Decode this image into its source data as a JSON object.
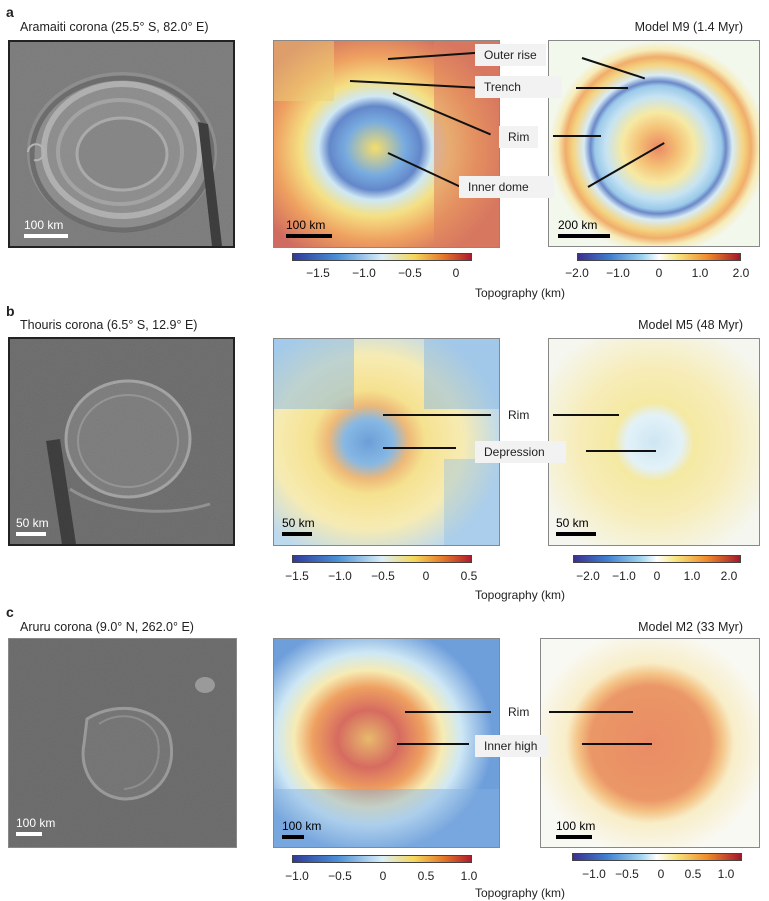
{
  "rows": [
    {
      "letter": "a",
      "title": "Aramaiti corona (25.5° S, 82.0° E)",
      "model": "Model M9 (1.4 Myr)",
      "scale_radar": "100 km",
      "scale_topo": "100 km",
      "scale_model": "200 km",
      "callouts": [
        "Outer rise",
        "Trench",
        "Rim",
        "Inner dome"
      ],
      "cb1": {
        "ticks": [
          "−1.5",
          "−1.0",
          "−0.5",
          "0"
        ]
      },
      "cb2": {
        "ticks": [
          "−2.0",
          "−1.0",
          "0",
          "1.0",
          "2.0"
        ]
      },
      "cb_title": "Topography (km)"
    },
    {
      "letter": "b",
      "title": "Thouris corona (6.5° S, 12.9° E)",
      "model": "Model M5 (48 Myr)",
      "scale_radar": "50 km",
      "scale_topo": "50 km",
      "scale_model": "50 km",
      "callouts": [
        "Rim",
        "Depression"
      ],
      "cb1": {
        "ticks": [
          "−1.5",
          "−1.0",
          "−0.5",
          "0",
          "0.5"
        ]
      },
      "cb2": {
        "ticks": [
          "−2.0",
          "−1.0",
          "0",
          "1.0",
          "2.0"
        ]
      },
      "cb_title": "Topography (km)"
    },
    {
      "letter": "c",
      "title": "Aruru corona (9.0° N, 262.0° E)",
      "model": "Model M2 (33 Myr)",
      "scale_radar": "100 km",
      "scale_topo": "100 km",
      "scale_model": "100 km",
      "callouts": [
        "Rim",
        "Inner high"
      ],
      "cb1": {
        "ticks": [
          "−1.0",
          "−0.5",
          "0",
          "0.5",
          "1.0"
        ]
      },
      "cb2": {
        "ticks": [
          "−1.0",
          "−0.5",
          "0",
          "0.5",
          "1.0"
        ]
      },
      "cb_title": "Topography (km)"
    }
  ],
  "colors": {
    "topo_low": "#3b3ea8",
    "topo_mid": "#ffffff",
    "topo_high": "#b2182b",
    "frame": "#222222"
  }
}
